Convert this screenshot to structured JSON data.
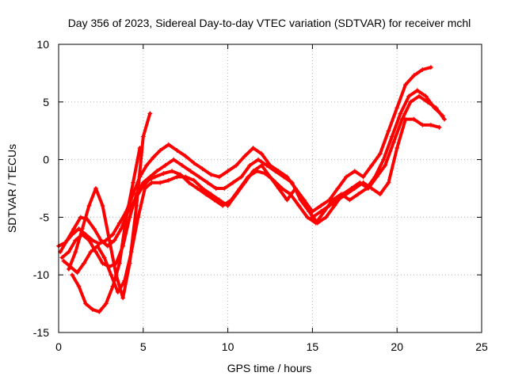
{
  "chart_data": {
    "type": "scatter",
    "title": "Day 356 of 2023, Sidereal Day-to-day VTEC variation (SDTVAR) for receiver mchl",
    "xlabel": "GPS time / hours",
    "ylabel": "SDTVAR / TECUs",
    "xlim": [
      0,
      25
    ],
    "ylim": [
      -15,
      10
    ],
    "xticks": [
      0,
      5,
      10,
      15,
      20,
      25
    ],
    "yticks": [
      -15,
      -10,
      -5,
      0,
      5,
      10
    ],
    "grid": true,
    "marker": "+",
    "color": "#ff0000",
    "series": [
      {
        "name": "track-1",
        "x": [
          0.0,
          0.4,
          0.8,
          1.2,
          1.6,
          2.0,
          2.4,
          2.8,
          3.2,
          3.6,
          4.0,
          4.4,
          4.8,
          5.2,
          5.6,
          6.0,
          6.5,
          7.0,
          7.5,
          8.0,
          8.5,
          9.0,
          9.5,
          10.0,
          10.5,
          11.0,
          11.5,
          12.0,
          12.5,
          13.0,
          13.5,
          14.0,
          14.5,
          15.0,
          15.5,
          16.0,
          16.5,
          17.0,
          17.5,
          18.0,
          18.5,
          19.0,
          19.5,
          20.0,
          20.5,
          21.0,
          21.5,
          22.0
        ],
        "y": [
          -7.5,
          -7.2,
          -6.5,
          -6.0,
          -6.5,
          -7.0,
          -7.3,
          -7.0,
          -6.5,
          -5.5,
          -4.5,
          -3.0,
          -1.5,
          -0.5,
          0.2,
          0.8,
          1.3,
          0.8,
          0.3,
          -0.3,
          -0.8,
          -1.3,
          -1.5,
          -1.0,
          -0.5,
          0.3,
          1.0,
          0.5,
          -0.5,
          -1.0,
          -1.5,
          -2.5,
          -3.5,
          -4.5,
          -4.0,
          -3.5,
          -2.5,
          -1.5,
          -1.0,
          -1.5,
          -0.5,
          0.5,
          2.5,
          4.5,
          6.5,
          7.3,
          7.8,
          8.0
        ]
      },
      {
        "name": "track-2",
        "x": [
          0.2,
          0.6,
          1.0,
          1.4,
          1.8,
          2.2,
          2.6,
          3.0,
          3.4,
          3.8,
          4.2,
          4.6,
          5.0,
          5.4,
          5.8,
          6.3,
          6.8,
          7.3,
          7.8,
          8.3,
          8.8,
          9.3,
          9.8,
          10.3,
          10.8,
          11.3,
          11.8,
          12.3,
          12.8,
          13.3,
          13.8,
          14.3,
          14.8,
          15.3,
          15.8,
          16.3,
          16.8,
          17.3,
          17.8,
          18.3,
          18.8,
          19.3,
          19.8,
          20.3,
          20.8,
          21.3,
          21.8,
          22.3,
          22.8
        ],
        "y": [
          -8.5,
          -8.0,
          -7.0,
          -6.5,
          -7.0,
          -8.0,
          -9.0,
          -9.3,
          -9.0,
          -7.5,
          -5.0,
          -3.0,
          -2.0,
          -1.5,
          -1.0,
          -0.5,
          0.0,
          -0.5,
          -1.0,
          -1.5,
          -2.0,
          -2.5,
          -2.5,
          -2.0,
          -1.5,
          -0.5,
          0.0,
          -0.5,
          -1.0,
          -1.5,
          -2.0,
          -3.5,
          -4.5,
          -5.5,
          -5.0,
          -4.0,
          -3.0,
          -2.5,
          -2.0,
          -2.5,
          -1.5,
          -0.5,
          1.5,
          3.5,
          5.0,
          5.5,
          5.0,
          4.5,
          3.5
        ]
      },
      {
        "name": "track-3",
        "x": [
          0.1,
          0.5,
          0.9,
          1.3,
          1.7,
          2.1,
          2.5,
          2.9,
          3.3,
          3.7,
          4.1,
          4.5,
          4.9,
          5.3,
          5.7,
          6.2,
          6.7,
          7.2,
          7.7,
          8.2,
          8.7,
          9.2,
          9.7,
          10.2,
          10.7,
          11.2,
          11.7,
          12.2,
          12.7,
          13.2,
          13.7,
          14.2,
          14.7,
          15.2,
          15.7,
          16.2,
          16.7,
          17.2,
          17.7,
          18.2,
          18.7,
          19.2,
          19.7,
          20.2,
          20.7,
          21.2,
          21.7,
          22.2,
          22.7
        ],
        "y": [
          -8.0,
          -7.0,
          -6.0,
          -5.0,
          -5.2,
          -6.0,
          -7.0,
          -7.5,
          -7.0,
          -6.0,
          -4.5,
          -3.5,
          -2.5,
          -1.8,
          -1.5,
          -1.2,
          -1.0,
          -1.3,
          -2.0,
          -2.5,
          -3.0,
          -3.5,
          -4.0,
          -3.5,
          -2.5,
          -1.5,
          -1.0,
          -1.2,
          -1.8,
          -2.5,
          -3.0,
          -4.0,
          -5.0,
          -5.5,
          -4.5,
          -3.5,
          -3.0,
          -3.5,
          -3.0,
          -2.5,
          -1.5,
          0.0,
          2.0,
          4.0,
          5.5,
          6.0,
          5.5,
          4.5,
          3.8
        ]
      },
      {
        "name": "track-4",
        "x": [
          0.3,
          0.7,
          1.1,
          1.5,
          1.9,
          2.3,
          2.7,
          3.1,
          3.5,
          3.9,
          4.3,
          4.7,
          5.1,
          5.5,
          6.0,
          6.5,
          7.0,
          7.5,
          8.0,
          8.5,
          9.0,
          9.5,
          10.0,
          10.5,
          11.0,
          11.5,
          12.0,
          12.5,
          13.0,
          13.5,
          14.0,
          14.5,
          15.0,
          15.5,
          16.0,
          16.5,
          17.0,
          17.5,
          18.0,
          18.5,
          19.0,
          19.5,
          20.0,
          20.5,
          21.0,
          21.5,
          22.0,
          22.5
        ],
        "y": [
          -8.8,
          -9.3,
          -9.8,
          -9.0,
          -8.0,
          -7.5,
          -8.5,
          -10.0,
          -11.5,
          -10.5,
          -8.0,
          -5.0,
          -2.5,
          -2.0,
          -2.0,
          -1.8,
          -1.5,
          -1.5,
          -1.8,
          -2.5,
          -3.0,
          -3.5,
          -4.0,
          -3.0,
          -2.0,
          -1.0,
          -0.5,
          -1.5,
          -2.5,
          -3.5,
          -2.5,
          -3.5,
          -5.0,
          -4.5,
          -4.0,
          -3.5,
          -3.0,
          -2.5,
          -2.0,
          -2.5,
          -3.0,
          -2.0,
          1.0,
          3.5,
          3.5,
          3.0,
          3.0,
          2.8
        ]
      },
      {
        "name": "track-5",
        "x": [
          0.6,
          1.0,
          1.4,
          1.8,
          2.2,
          2.6,
          3.0,
          3.4,
          3.8,
          4.2,
          4.6,
          5.0,
          5.4
        ],
        "y": [
          -9.5,
          -8.0,
          -6.0,
          -4.0,
          -2.5,
          -4.0,
          -7.0,
          -10.0,
          -12.0,
          -9.0,
          -4.0,
          2.0,
          4.0
        ]
      },
      {
        "name": "track-6",
        "x": [
          0.8,
          1.2,
          1.6,
          2.0,
          2.4,
          2.8,
          3.2,
          3.6,
          4.0,
          4.4,
          4.8
        ],
        "y": [
          -10.0,
          -11.0,
          -12.5,
          -13.0,
          -13.2,
          -12.5,
          -11.0,
          -9.0,
          -5.0,
          -2.0,
          1.0
        ]
      }
    ]
  }
}
